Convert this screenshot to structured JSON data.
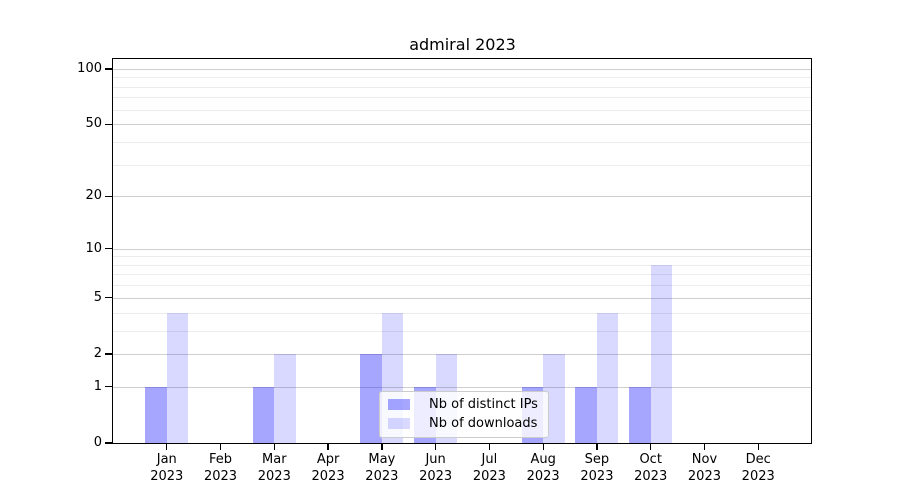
{
  "chart_data": {
    "type": "bar",
    "title": "admiral 2023",
    "categories": [
      "Jan",
      "Feb",
      "Mar",
      "Apr",
      "May",
      "Jun",
      "Jul",
      "Aug",
      "Sep",
      "Oct",
      "Nov",
      "Dec"
    ],
    "x_tick_second_line": "2023",
    "series": [
      {
        "name": "Nb of distinct IPs",
        "color": "#0000ff",
        "alpha": 0.35,
        "values": [
          1,
          0,
          1,
          0,
          2,
          1,
          0,
          1,
          1,
          1,
          0,
          0
        ]
      },
      {
        "name": "Nb of downloads",
        "color": "#0000ff",
        "alpha": 0.15,
        "values": [
          4,
          0,
          2,
          0,
          4,
          2,
          0,
          2,
          4,
          8,
          0,
          0
        ]
      }
    ],
    "y_axis": {
      "scale": "log1p",
      "major_ticks": [
        100,
        50,
        20,
        10,
        5,
        2,
        1,
        0
      ],
      "minor_ticks": [
        3,
        4,
        6,
        7,
        8,
        9,
        30,
        40,
        60,
        70,
        80,
        90
      ],
      "max": 113
    },
    "xlabel": "",
    "ylabel": "",
    "grid": true,
    "legend": {
      "location": "lower center"
    }
  }
}
